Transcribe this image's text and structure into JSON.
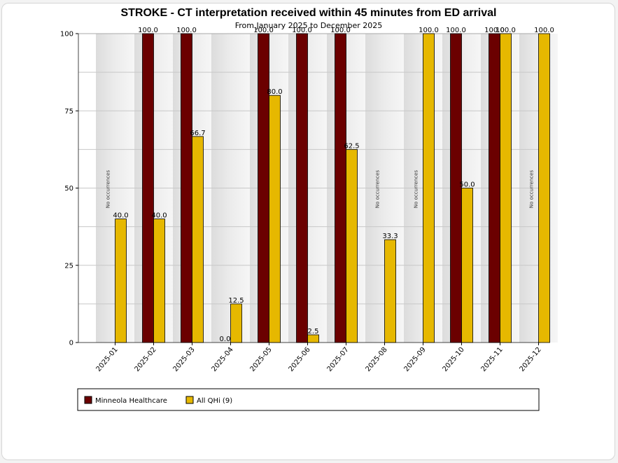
{
  "chart_data": {
    "type": "bar",
    "title": "STROKE - CT interpretation received within 45 minutes from ED arrival",
    "subtitle": "From January 2025 to December 2025",
    "xlabel": "",
    "ylabel": "",
    "ylim": [
      0,
      100
    ],
    "yticks": [
      0,
      25,
      50,
      75,
      100
    ],
    "no_occurrences_label": "No occurrences",
    "categories": [
      "2025-01",
      "2025-02",
      "2025-03",
      "2025-04",
      "2025-05",
      "2025-06",
      "2025-07",
      "2025-08",
      "2025-09",
      "2025-10",
      "2025-11",
      "2025-12"
    ],
    "series": [
      {
        "name": "Minneola Healthcare",
        "color": "#6b0000",
        "values": [
          null,
          100.0,
          100.0,
          0.0,
          100.0,
          100.0,
          100.0,
          null,
          null,
          100.0,
          100.0,
          null
        ],
        "labels": [
          "",
          "100.0",
          "100.0",
          "0.0",
          "100.0",
          "100.0",
          "100.0",
          "",
          "",
          "100.0",
          "100.0",
          ""
        ]
      },
      {
        "name": "All QHi (9)",
        "color": "#e6b800",
        "values": [
          40.0,
          40.0,
          66.7,
          12.5,
          80.0,
          2.5,
          62.5,
          33.3,
          100.0,
          50.0,
          100.0,
          100.0
        ],
        "labels": [
          "40.0",
          "40.0",
          "66.7",
          "12.5",
          "80.0",
          "2.5",
          "62.5",
          "33.3",
          "100.0",
          "50.0",
          "100.0",
          "100.0"
        ]
      }
    ],
    "legend": [
      "Minneola Healthcare",
      "All QHi (9)"
    ]
  }
}
